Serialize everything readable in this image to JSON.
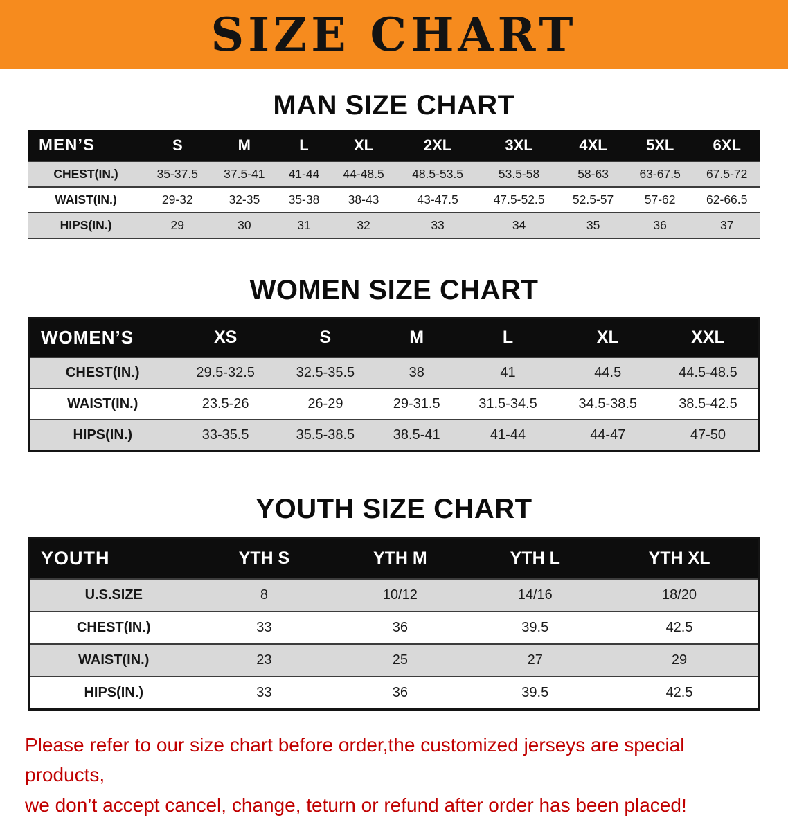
{
  "page": {
    "banner_title": "SIZE CHART"
  },
  "colors": {
    "banner_bg": "#F68B1E",
    "header_bg": "#0D0D0D",
    "row_alt": "#D9D9D9",
    "line": "#3C3C3C",
    "disclaimer": "#C00000"
  },
  "chart_data": [
    {
      "type": "table",
      "title": "MAN SIZE CHART",
      "columns": [
        "MEN’S",
        "S",
        "M",
        "L",
        "XL",
        "2XL",
        "3XL",
        "4XL",
        "5XL",
        "6XL"
      ],
      "rows": [
        [
          "CHEST(IN.)",
          "35-37.5",
          "37.5-41",
          "41-44",
          "44-48.5",
          "48.5-53.5",
          "53.5-58",
          "58-63",
          "63-67.5",
          "67.5-72"
        ],
        [
          "WAIST(IN.)",
          "29-32",
          "32-35",
          "35-38",
          "38-43",
          "43-47.5",
          "47.5-52.5",
          "52.5-57",
          "57-62",
          "62-66.5"
        ],
        [
          "HIPS(IN.)",
          "29",
          "30",
          "31",
          "32",
          "33",
          "34",
          "35",
          "36",
          "37"
        ]
      ]
    },
    {
      "type": "table",
      "title": "WOMEN SIZE CHART",
      "columns": [
        "WOMEN’S",
        "XS",
        "S",
        "M",
        "L",
        "XL",
        "XXL"
      ],
      "rows": [
        [
          "CHEST(IN.)",
          "29.5-32.5",
          "32.5-35.5",
          "38",
          "41",
          "44.5",
          "44.5-48.5"
        ],
        [
          "WAIST(IN.)",
          "23.5-26",
          "26-29",
          "29-31.5",
          "31.5-34.5",
          "34.5-38.5",
          "38.5-42.5"
        ],
        [
          "HIPS(IN.)",
          "33-35.5",
          "35.5-38.5",
          "38.5-41",
          "41-44",
          "44-47",
          "47-50"
        ]
      ]
    },
    {
      "type": "table",
      "title": "YOUTH SIZE CHART",
      "columns": [
        "YOUTH",
        "YTH S",
        "YTH M",
        "YTH L",
        "YTH XL"
      ],
      "rows": [
        [
          "U.S.SIZE",
          "8",
          "10/12",
          "14/16",
          "18/20"
        ],
        [
          "CHEST(IN.)",
          "33",
          "36",
          "39.5",
          "42.5"
        ],
        [
          "WAIST(IN.)",
          "23",
          "25",
          "27",
          "29"
        ],
        [
          "HIPS(IN.)",
          "33",
          "36",
          "39.5",
          "42.5"
        ]
      ]
    }
  ],
  "disclaimer": {
    "line1": "Please refer to our size chart before order,the customized jerseys are special products,",
    "line2": "we don’t accept cancel, change, teturn or refund after order has been placed!"
  }
}
